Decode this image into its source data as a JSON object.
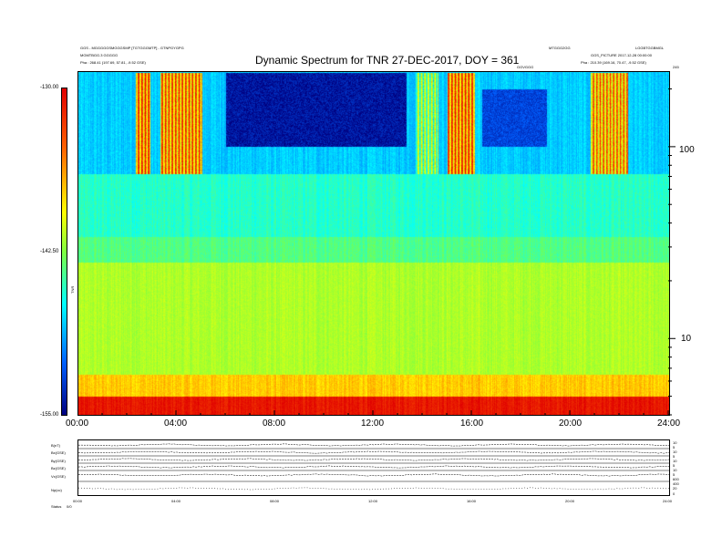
{
  "header": {
    "title": "Dynamic Spectrum for TNR 27-DEC-2017, DOY = 361",
    "top_left_line1": "GGS - MGGGGGSMGGGSMP [TGTGGGMTP] - GTNPGYGPG",
    "top_left_line2": "MGMTBGG.3 GGGGG",
    "top_left_line3": "Pha : 268.41 (197.69, 57.81, -9.52 GSE)",
    "top_right_line1": "MTGGG2GG",
    "top_right_line2": "LGGBTGGBMGL",
    "top_right_line3": "GGS_PICTURE 2017-12-28 00:00:00",
    "top_right_line4": "Pha : 210.39 (169.16, 70.47, -9.52 GSE)",
    "mid_label": "GGVGGG"
  },
  "colorbar": {
    "top_label": "-130.00",
    "mid_label": "-142.50",
    "bottom_label": "-155.00",
    "axis_title": "TNR"
  },
  "chart_data": [
    {
      "type": "heatmap",
      "title": "Dynamic Spectrum for TNR 27-DEC-2017, DOY = 361",
      "xlabel": "",
      "ylabel": "",
      "x_ticks": [
        "00:00",
        "04:00",
        "08:00",
        "12:00",
        "16:00",
        "20:00",
        "24:00"
      ],
      "x_range_hours": [
        0,
        24
      ],
      "y_scale": "log",
      "y_ticks": [
        "100",
        "10"
      ],
      "y_range_khz": [
        4,
        245
      ],
      "color_range": [
        -155.0,
        -130.0
      ],
      "colormap": [
        "#000080",
        "#0060ff",
        "#00ffff",
        "#80ff40",
        "#ffff00",
        "#ff6000",
        "#e00000"
      ],
      "top_right_label": "245",
      "background_bands": [
        {
          "from_khz": 4.0,
          "to_khz": 5.0,
          "level": -131.0
        },
        {
          "from_khz": 5.0,
          "to_khz": 6.5,
          "level": -137.0
        },
        {
          "from_khz": 6.5,
          "to_khz": 25.0,
          "level": -141.0
        },
        {
          "from_khz": 25.0,
          "to_khz": 34.0,
          "level": -144.0
        },
        {
          "from_khz": 34.0,
          "to_khz": 72.0,
          "level": -145.5
        },
        {
          "from_khz": 72.0,
          "to_khz": 245.0,
          "level": -148.0
        }
      ],
      "bursts": [
        {
          "start_h": 2.3,
          "end_h": 2.9,
          "from_khz": 72,
          "to_khz": 245,
          "level": -130.5
        },
        {
          "start_h": 3.3,
          "end_h": 5.0,
          "from_khz": 72,
          "to_khz": 245,
          "level": -131.0
        },
        {
          "start_h": 13.7,
          "end_h": 14.6,
          "from_khz": 72,
          "to_khz": 245,
          "level": -138.0
        },
        {
          "start_h": 15.0,
          "end_h": 16.1,
          "from_khz": 72,
          "to_khz": 245,
          "level": -130.5
        },
        {
          "start_h": 20.8,
          "end_h": 22.3,
          "from_khz": 72,
          "to_khz": 245,
          "level": -132.0
        }
      ],
      "quiet_regions": [
        {
          "start_h": 6.0,
          "end_h": 13.3,
          "from_khz": 100,
          "to_khz": 245,
          "level": -154.0
        },
        {
          "start_h": 16.4,
          "end_h": 19.0,
          "from_khz": 100,
          "to_khz": 200,
          "level": -152.0
        }
      ]
    },
    {
      "type": "line",
      "title": "",
      "x_ticks": [
        "00:00",
        "04:00",
        "08:00",
        "12:00",
        "16:00",
        "20:00",
        "24:00"
      ],
      "series": [
        {
          "name": "B(nT)",
          "right_ticks": [
            "10",
            "5"
          ]
        },
        {
          "name": "Bx(GSE)",
          "right_ticks": [
            "10",
            "5"
          ]
        },
        {
          "name": "By(GSE)",
          "right_ticks": [
            "10",
            "5"
          ]
        },
        {
          "name": "Bz(GSE)",
          "right_ticks": [
            "10",
            "5"
          ]
        },
        {
          "name": "Vx(GSE)",
          "right_ticks": [
            "600",
            "400"
          ]
        },
        {
          "name": "Np(cc)",
          "right_ticks": [
            "20",
            "0"
          ]
        }
      ]
    }
  ],
  "footer": {
    "left_label": "Status",
    "left_value": "0/0"
  }
}
